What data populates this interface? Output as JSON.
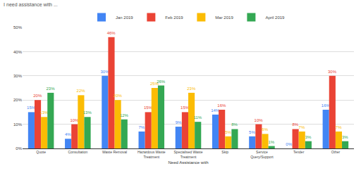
{
  "chart_data": {
    "type": "bar",
    "title": "I need assistance with ...",
    "x_label": "Need Assistance with",
    "categories": [
      "Quote",
      "Consultation",
      "Waste Removal",
      "Hazardous Waste Treatment",
      "Specialised Waste Treatment",
      "Skip",
      "Service Query/Support",
      "Tender",
      "Other"
    ],
    "series": [
      {
        "name": "Jan 2019",
        "color": "#4285f4",
        "values": [
          15,
          4,
          30,
          7,
          9,
          14,
          5,
          0,
          16
        ],
        "value_labels": [
          "15%",
          "4%",
          "30%",
          "7%",
          "9%",
          "14%",
          "5%",
          "0%",
          "16%"
        ]
      },
      {
        "name": "Feb 2019",
        "color": "#ea4335",
        "values": [
          20,
          10,
          46,
          15,
          15,
          16,
          10,
          8,
          30
        ],
        "value_labels": [
          "20%",
          "10%",
          "46%",
          "15%",
          "15%",
          "16%",
          "10%",
          "8%",
          "30%"
        ]
      },
      {
        "name": "Mar 2019",
        "color": "#fbbc04",
        "values": [
          13,
          22,
          20,
          25,
          23,
          5,
          6,
          7,
          7
        ],
        "value_labels": [
          "13%",
          "22%",
          "20%",
          "25%",
          "23%",
          "5%",
          "6%",
          "7%",
          "7%"
        ]
      },
      {
        "name": "April 2019",
        "color": "#34a853",
        "values": [
          23,
          13,
          12,
          26,
          11,
          8,
          1,
          3,
          3
        ],
        "value_labels": [
          "23%",
          "13%",
          "12%",
          "26%",
          "11%",
          "8%",
          "1%",
          "3%",
          "3%"
        ]
      }
    ],
    "ylim": [
      0,
      50
    ],
    "yticks": [
      {
        "value": 0,
        "label": "0%"
      },
      {
        "value": 10,
        "label": "10%"
      },
      {
        "value": 20,
        "label": "20%"
      },
      {
        "value": 30,
        "label": "30%"
      },
      {
        "value": 40,
        "label": "40%"
      },
      {
        "value": 50,
        "label": "50%"
      }
    ],
    "grid": true,
    "legend": "top",
    "data_labels": true
  }
}
